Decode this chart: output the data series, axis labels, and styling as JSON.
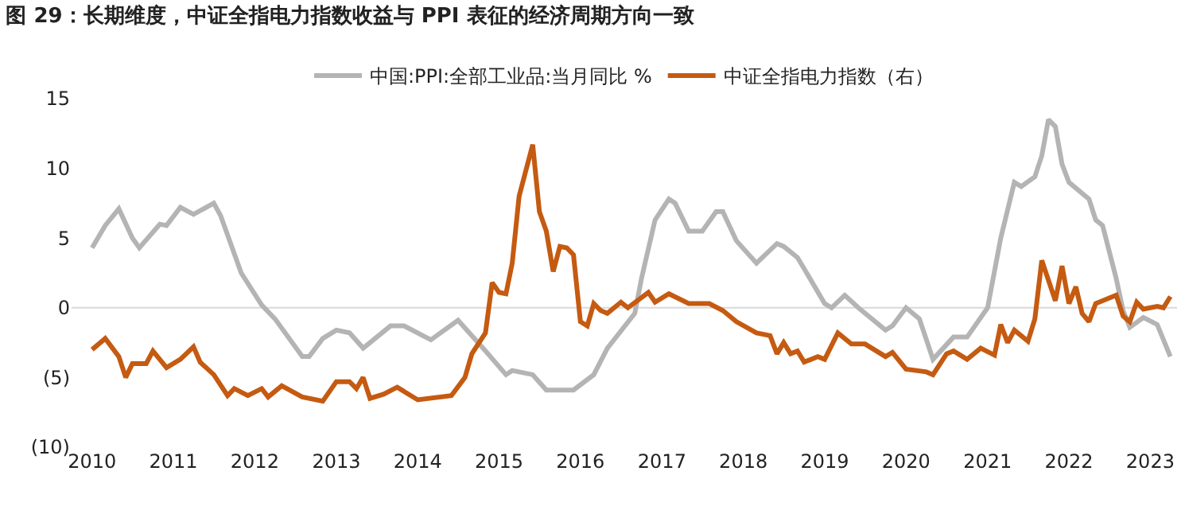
{
  "chart_data": {
    "type": "line",
    "title": "图 29：长期维度，中证全指电力指数收益与 PPI 表征的经济周期方向一致",
    "series": [
      {
        "name": "中国:PPI:全部工业品:当月同比 %",
        "color": "#b4b4b4",
        "x": [
          "2010-01",
          "2010-03",
          "2010-05",
          "2010-07",
          "2010-08",
          "2010-11",
          "2010-12",
          "2011-02",
          "2011-04",
          "2011-07",
          "2011-08",
          "2011-11",
          "2012-02",
          "2012-04",
          "2012-08",
          "2012-09",
          "2012-11",
          "2013-01",
          "2013-03",
          "2013-05",
          "2013-06",
          "2013-09",
          "2013-11",
          "2014-03",
          "2014-07",
          "2014-11",
          "2015-02",
          "2015-03",
          "2015-06",
          "2015-08",
          "2015-12",
          "2016-03",
          "2016-05",
          "2016-09",
          "2016-10",
          "2016-12",
          "2017-02",
          "2017-03",
          "2017-05",
          "2017-07",
          "2017-09",
          "2017-10",
          "2017-12",
          "2018-03",
          "2018-06",
          "2018-07",
          "2018-09",
          "2018-10",
          "2019-01",
          "2019-02",
          "2019-04",
          "2019-06",
          "2019-10",
          "2019-11",
          "2020-01",
          "2020-03",
          "2020-05",
          "2020-08",
          "2020-10",
          "2021-01",
          "2021-03",
          "2021-05",
          "2021-06",
          "2021-08",
          "2021-09",
          "2021-10",
          "2021-11",
          "2021-12",
          "2022-01",
          "2022-04",
          "2022-05",
          "2022-06",
          "2022-08",
          "2022-09",
          "2022-10",
          "2022-12",
          "2023-02",
          "2023-04"
        ],
        "values": [
          4.3,
          5.9,
          7.1,
          5.0,
          4.3,
          6.0,
          5.9,
          7.2,
          6.7,
          7.5,
          6.6,
          2.5,
          0.2,
          -0.8,
          -3.5,
          -3.5,
          -2.2,
          -1.6,
          -1.8,
          -2.9,
          -2.5,
          -1.3,
          -1.3,
          -2.3,
          -0.9,
          -3.1,
          -4.8,
          -4.5,
          -4.8,
          -5.9,
          -5.9,
          -4.8,
          -2.9,
          -0.4,
          2.1,
          6.3,
          7.8,
          7.5,
          5.5,
          5.5,
          6.9,
          6.9,
          4.8,
          3.2,
          4.6,
          4.4,
          3.6,
          2.8,
          0.3,
          0.0,
          0.9,
          0.0,
          -1.6,
          -1.3,
          0.0,
          -0.8,
          -3.7,
          -2.1,
          -2.1,
          0.0,
          5.0,
          9.0,
          8.7,
          9.4,
          10.9,
          13.5,
          13.0,
          10.3,
          9.0,
          7.8,
          6.3,
          5.9,
          2.1,
          -0.2,
          -1.4,
          -0.7,
          -1.2,
          -3.5
        ]
      },
      {
        "name": "中证全指电力指数（右）",
        "color": "#c55a11",
        "x": [
          "2010-01",
          "2010-03",
          "2010-05",
          "2010-06",
          "2010-07",
          "2010-09",
          "2010-10",
          "2010-12",
          "2011-02",
          "2011-04",
          "2011-05",
          "2011-07",
          "2011-09",
          "2011-10",
          "2011-12",
          "2012-02",
          "2012-03",
          "2012-05",
          "2012-08",
          "2012-11",
          "2013-01",
          "2013-03",
          "2013-04",
          "2013-05",
          "2013-06",
          "2013-08",
          "2013-10",
          "2014-01",
          "2014-06",
          "2014-08",
          "2014-09",
          "2014-11",
          "2014-12",
          "2015-01",
          "2015-02",
          "2015-03",
          "2015-04",
          "2015-06",
          "2015-07",
          "2015-08",
          "2015-09",
          "2015-10",
          "2015-11",
          "2015-12",
          "2016-01",
          "2016-02",
          "2016-03",
          "2016-04",
          "2016-05",
          "2016-07",
          "2016-08",
          "2016-11",
          "2016-12",
          "2017-02",
          "2017-05",
          "2017-08",
          "2017-10",
          "2017-12",
          "2018-03",
          "2018-05",
          "2018-06",
          "2018-07",
          "2018-08",
          "2018-09",
          "2018-10",
          "2018-12",
          "2019-01",
          "2019-03",
          "2019-05",
          "2019-07",
          "2019-10",
          "2019-11",
          "2020-01",
          "2020-04",
          "2020-05",
          "2020-07",
          "2020-08",
          "2020-10",
          "2020-12",
          "2021-02",
          "2021-03",
          "2021-04",
          "2021-05",
          "2021-07",
          "2021-08",
          "2021-09",
          "2021-11",
          "2021-12",
          "2022-01",
          "2022-02",
          "2022-03",
          "2022-04",
          "2022-05",
          "2022-08",
          "2022-09",
          "2022-10",
          "2022-11",
          "2022-12",
          "2023-02",
          "2023-03",
          "2023-04"
        ],
        "values": [
          -3.0,
          -2.2,
          -3.5,
          -5.0,
          -4.0,
          -4.0,
          -3.1,
          -4.3,
          -3.7,
          -2.8,
          -3.9,
          -4.8,
          -6.3,
          -5.8,
          -6.3,
          -5.8,
          -6.4,
          -5.6,
          -6.4,
          -6.7,
          -5.3,
          -5.3,
          -5.8,
          -5.0,
          -6.5,
          -6.2,
          -5.7,
          -6.6,
          -6.3,
          -5.0,
          -3.3,
          -1.8,
          1.8,
          1.1,
          1.0,
          3.2,
          8.0,
          11.7,
          6.9,
          5.5,
          2.6,
          4.4,
          4.3,
          3.8,
          -1.0,
          -1.3,
          0.3,
          -0.2,
          -0.4,
          0.4,
          0.0,
          1.1,
          0.4,
          1.0,
          0.3,
          0.3,
          -0.2,
          -1.0,
          -1.8,
          -2.0,
          -3.3,
          -2.5,
          -3.3,
          -3.1,
          -3.9,
          -3.5,
          -3.7,
          -1.8,
          -2.6,
          -2.6,
          -3.5,
          -3.2,
          -4.4,
          -4.6,
          -4.8,
          -3.3,
          -3.1,
          -3.7,
          -2.9,
          -3.4,
          -1.2,
          -2.5,
          -1.6,
          -2.4,
          -0.8,
          3.4,
          0.5,
          3.0,
          0.3,
          1.5,
          -0.4,
          -1.0,
          0.3,
          0.9,
          -0.6,
          -1.0,
          0.4,
          -0.1,
          0.1,
          0.0,
          0.8
        ]
      }
    ],
    "xlim": [
      "2009-10",
      "2023-05"
    ],
    "xticks": [
      {
        "value": "2010-01",
        "label": "2010"
      },
      {
        "value": "2011-01",
        "label": "2011"
      },
      {
        "value": "2012-01",
        "label": "2012"
      },
      {
        "value": "2013-01",
        "label": "2013"
      },
      {
        "value": "2014-01",
        "label": "2014"
      },
      {
        "value": "2015-01",
        "label": "2015"
      },
      {
        "value": "2016-01",
        "label": "2016"
      },
      {
        "value": "2017-01",
        "label": "2017"
      },
      {
        "value": "2018-01",
        "label": "2018"
      },
      {
        "value": "2019-01",
        "label": "2019"
      },
      {
        "value": "2020-01",
        "label": "2020"
      },
      {
        "value": "2021-01",
        "label": "2021"
      },
      {
        "value": "2022-01",
        "label": "2022"
      },
      {
        "value": "2023-01",
        "label": "2023"
      }
    ],
    "ylim": [
      -10,
      15
    ],
    "yticks": [
      15,
      10,
      5,
      0,
      {
        "value": -5,
        "label": "(5)"
      },
      {
        "value": -10,
        "label": "(10)"
      }
    ],
    "ref_lines": [
      {
        "axis": "y",
        "value": 0,
        "color": "#d9d9d9"
      }
    ],
    "grid": false,
    "legend": "top",
    "line_style": "solid",
    "marker": "none"
  }
}
